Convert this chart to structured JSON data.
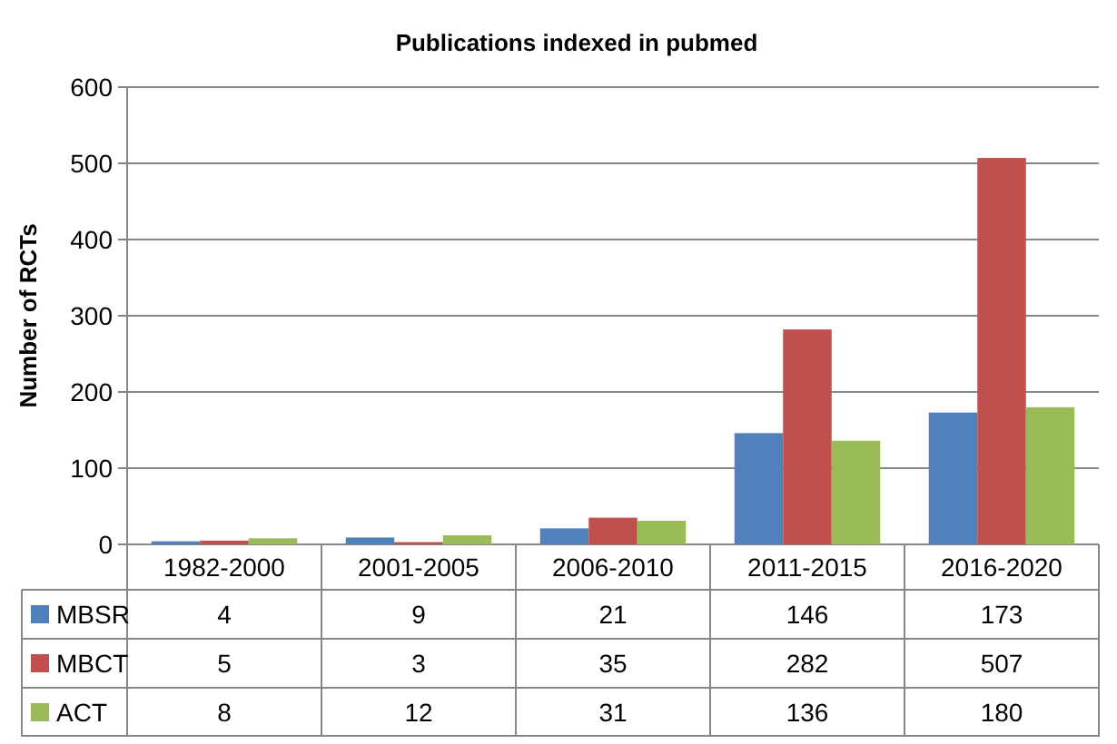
{
  "chart_data": {
    "type": "bar",
    "title": "Publications  indexed in pubmed",
    "ylabel": "Number of RCTs",
    "categories": [
      "1982-2000",
      "2001-2005",
      "2006-2010",
      "2011-2015",
      "2016-2020"
    ],
    "series": [
      {
        "name": "MBSR",
        "color": "#4f81bd",
        "values": [
          4,
          9,
          21,
          146,
          173
        ]
      },
      {
        "name": "MBCT",
        "color": "#c0504d",
        "values": [
          5,
          3,
          35,
          282,
          507
        ]
      },
      {
        "name": "ACT",
        "color": "#9bbb59",
        "values": [
          8,
          12,
          31,
          136,
          180
        ]
      }
    ],
    "ylim": [
      0,
      600
    ],
    "yticks": [
      0,
      100,
      200,
      300,
      400,
      500,
      600
    ],
    "grid": "y",
    "legend": "bottom",
    "data_labels": true
  }
}
